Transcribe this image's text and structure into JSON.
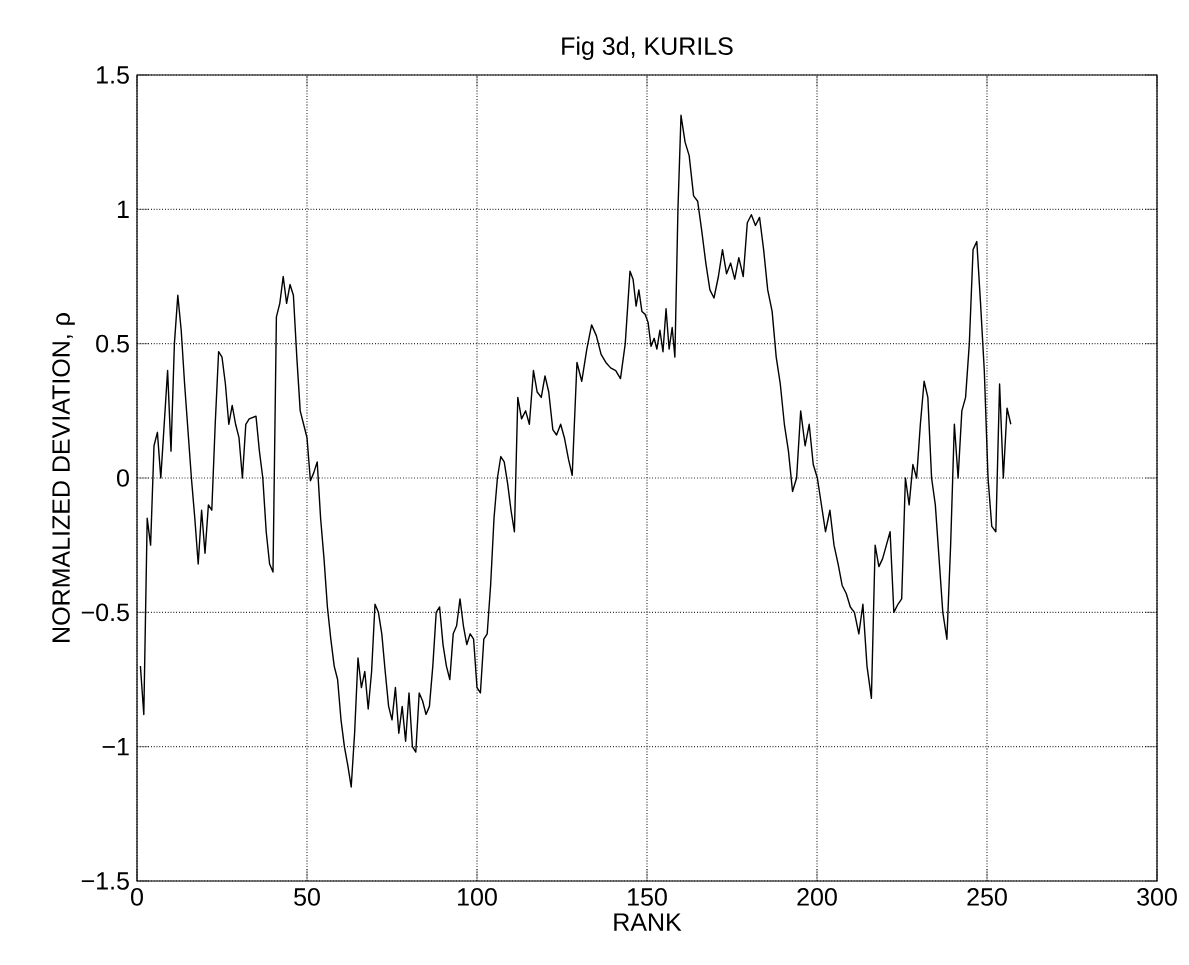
{
  "chart_data": {
    "type": "line",
    "title": "Fig 3d, KURILS",
    "xlabel": "RANK",
    "ylabel": "NORMALIZED DEVIATION, ρ",
    "xlim": [
      0,
      300
    ],
    "ylim": [
      -1.5,
      1.5
    ],
    "xticks": [
      0,
      50,
      100,
      150,
      200,
      250,
      300
    ],
    "yticks": [
      {
        "value": -1.5,
        "label": "−1.5"
      },
      {
        "value": -1,
        "label": "−1"
      },
      {
        "value": -0.5,
        "label": "−0.5"
      },
      0,
      0.5,
      1,
      1.5
    ],
    "grid": true,
    "color": "#000000",
    "line_style": "solid",
    "marker": "none",
    "x": [
      1,
      2,
      3,
      4,
      5,
      6,
      7,
      8,
      9,
      10,
      11,
      12,
      13,
      14,
      16,
      17,
      18,
      19,
      20,
      21,
      22,
      23,
      24,
      25,
      26,
      27,
      28,
      29,
      30,
      31,
      32,
      33,
      35,
      36,
      37,
      38,
      39,
      40,
      41,
      42,
      43,
      44,
      45,
      46,
      47,
      48,
      49,
      50,
      51,
      52,
      53,
      54,
      55,
      56,
      57,
      58,
      59,
      60,
      61,
      62,
      63,
      64,
      65,
      66,
      67,
      68,
      69,
      70,
      71,
      72,
      73,
      74,
      75,
      76,
      77,
      78,
      79,
      80,
      81,
      82,
      83,
      84,
      85,
      86,
      87,
      88,
      89,
      90,
      91,
      92,
      93,
      94,
      95,
      96,
      97,
      98,
      99,
      100,
      101,
      102,
      103,
      104,
      105,
      106,
      107,
      108,
      109,
      110,
      111,
      112,
      113.1,
      114.3,
      115.4,
      116.6,
      117.7,
      118.9,
      120,
      121.1,
      122.3,
      123.4,
      124.6,
      125.7,
      126.9,
      128,
      129.4,
      130.8,
      132.3,
      133.7,
      135.1,
      136.5,
      137.9,
      139.3,
      140.8,
      142.2,
      143.6,
      145,
      145.9,
      146.8,
      147.6,
      148.5,
      149.4,
      150.3,
      151.2,
      152.1,
      152.9,
      153.8,
      154.7,
      155.6,
      156.5,
      157.4,
      158.2,
      159.1,
      160,
      161.2,
      162.4,
      163.7,
      164.9,
      166.1,
      167.3,
      168.5,
      169.7,
      171,
      172.2,
      173.4,
      174.6,
      175.8,
      177,
      178.3,
      179.5,
      180.7,
      181.9,
      183.1,
      184.3,
      185.5,
      186.8,
      188,
      189.2,
      190.4,
      191.6,
      192.8,
      194,
      195.2,
      196.5,
      197.7,
      198.9,
      200.1,
      201.3,
      202.5,
      203.8,
      205,
      206.2,
      207.4,
      208.6,
      209.8,
      211,
      212.3,
      213.5,
      214.7,
      216,
      217.1,
      218.2,
      219.3,
      220.4,
      221.5,
      222.6,
      223.8,
      224.9,
      226,
      227.1,
      228.2,
      229.3,
      230.4,
      231.5,
      232.6,
      233.7,
      234.8,
      235.9,
      237,
      238.2,
      239.3,
      240.4,
      241.5,
      242.6,
      243.7,
      244.8,
      245.9,
      247,
      248.1,
      249.2,
      250.3,
      251.4,
      252.6,
      253.7,
      254.8,
      255.9,
      257
    ],
    "values": [
      -0.7,
      -0.88,
      -0.15,
      -0.25,
      0.12,
      0.17,
      0.0,
      0.2,
      0.4,
      0.1,
      0.5,
      0.68,
      0.55,
      0.35,
      0.0,
      -0.15,
      -0.32,
      -0.12,
      -0.28,
      -0.1,
      -0.12,
      0.2,
      0.47,
      0.45,
      0.35,
      0.2,
      0.27,
      0.2,
      0.15,
      0.0,
      0.2,
      0.22,
      0.23,
      0.1,
      0.0,
      -0.2,
      -0.32,
      -0.35,
      0.6,
      0.65,
      0.75,
      0.65,
      0.72,
      0.68,
      0.45,
      0.25,
      0.2,
      0.15,
      -0.01,
      0.02,
      0.06,
      -0.15,
      -0.3,
      -0.48,
      -0.6,
      -0.7,
      -0.75,
      -0.9,
      -1.0,
      -1.07,
      -1.15,
      -0.95,
      -0.67,
      -0.78,
      -0.72,
      -0.86,
      -0.72,
      -0.47,
      -0.5,
      -0.58,
      -0.72,
      -0.85,
      -0.9,
      -0.78,
      -0.95,
      -0.85,
      -0.98,
      -0.8,
      -1.0,
      -1.02,
      -0.8,
      -0.83,
      -0.88,
      -0.85,
      -0.7,
      -0.5,
      -0.48,
      -0.62,
      -0.7,
      -0.75,
      -0.58,
      -0.55,
      -0.45,
      -0.55,
      -0.62,
      -0.58,
      -0.6,
      -0.78,
      -0.8,
      -0.6,
      -0.58,
      -0.4,
      -0.15,
      0.0,
      0.08,
      0.06,
      -0.02,
      -0.12,
      -0.2,
      0.3,
      0.22,
      0.25,
      0.2,
      0.4,
      0.32,
      0.3,
      0.38,
      0.32,
      0.18,
      0.16,
      0.2,
      0.15,
      0.07,
      0.01,
      0.43,
      0.36,
      0.48,
      0.57,
      0.53,
      0.46,
      0.43,
      0.41,
      0.4,
      0.37,
      0.5,
      0.77,
      0.74,
      0.64,
      0.7,
      0.62,
      0.61,
      0.58,
      0.49,
      0.52,
      0.48,
      0.55,
      0.47,
      0.63,
      0.48,
      0.56,
      0.45,
      1.0,
      1.35,
      1.25,
      1.2,
      1.05,
      1.03,
      0.92,
      0.8,
      0.7,
      0.67,
      0.75,
      0.85,
      0.76,
      0.8,
      0.74,
      0.82,
      0.75,
      0.95,
      0.98,
      0.94,
      0.97,
      0.85,
      0.7,
      0.62,
      0.45,
      0.35,
      0.2,
      0.1,
      -0.05,
      0.0,
      0.25,
      0.12,
      0.2,
      0.05,
      0.0,
      -0.1,
      -0.2,
      -0.12,
      -0.25,
      -0.32,
      -0.4,
      -0.43,
      -0.48,
      -0.5,
      -0.58,
      -0.47,
      -0.7,
      -0.82,
      -0.25,
      -0.33,
      -0.3,
      -0.25,
      -0.2,
      -0.5,
      -0.47,
      -0.45,
      0.0,
      -0.1,
      0.05,
      0.0,
      0.2,
      0.36,
      0.3,
      0.0,
      -0.1,
      -0.3,
      -0.5,
      -0.6,
      -0.25,
      0.2,
      0.0,
      0.25,
      0.3,
      0.5,
      0.85,
      0.88,
      0.65,
      0.4,
      0.0,
      -0.18,
      -0.2,
      0.35,
      0.0,
      0.26,
      0.2
    ]
  }
}
